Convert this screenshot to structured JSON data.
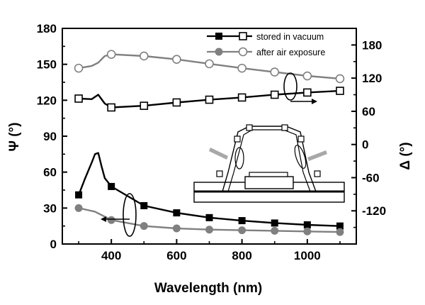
{
  "chart_data": {
    "type": "line",
    "xlabel": "Wavelength (nm)",
    "ylabel_left": "Ψ (°)",
    "ylabel_right": "Δ (°)",
    "xlim": [
      250,
      1150
    ],
    "ylim_left": [
      0,
      180
    ],
    "ylim_right": [
      -180,
      210
    ],
    "xticks": [
      400,
      600,
      800,
      1000
    ],
    "yticks_left": [
      0,
      30,
      60,
      90,
      120,
      150,
      180
    ],
    "yticks_right": [
      -120,
      -60,
      0,
      60,
      120,
      180
    ],
    "grid": false,
    "legend_position": "top-right",
    "legend": [
      "stored in vacuum",
      "after air exposure"
    ],
    "series": [
      {
        "name": "stored in vacuum",
        "quantity": "Ψ",
        "axis": "left",
        "marker": "filled-square",
        "color": "#000000",
        "x": [
          300,
          320,
          340,
          350,
          360,
          370,
          380,
          400,
          500,
          600,
          700,
          800,
          900,
          1000,
          1100
        ],
        "y": [
          41,
          55,
          68,
          75,
          76,
          65,
          55,
          48,
          32,
          26,
          22,
          19.5,
          17.5,
          16,
          15
        ],
        "marker_x": [
          300,
          400,
          500,
          600,
          700,
          800,
          900,
          1000,
          1100
        ],
        "marker_y": [
          41,
          48,
          32,
          26,
          22,
          19.5,
          17.5,
          16,
          15
        ]
      },
      {
        "name": "after air exposure",
        "quantity": "Ψ",
        "axis": "left",
        "marker": "filled-circle",
        "color": "#808080",
        "x": [
          300,
          350,
          400,
          500,
          600,
          700,
          800,
          900,
          1000,
          1100
        ],
        "y": [
          30,
          27,
          20,
          15,
          13,
          12,
          11.5,
          11,
          10.5,
          10
        ],
        "marker_x": [
          300,
          400,
          500,
          600,
          700,
          800,
          900,
          1000,
          1100
        ],
        "marker_y": [
          30,
          20,
          15,
          13,
          12,
          11.5,
          11,
          10.5,
          10
        ]
      },
      {
        "name": "stored in vacuum",
        "quantity": "Δ",
        "axis": "right",
        "marker": "open-square",
        "color": "#000000",
        "x": [
          300,
          340,
          360,
          380,
          400,
          500,
          600,
          700,
          800,
          900,
          1000,
          1100
        ],
        "y": [
          83,
          82,
          90,
          74,
          67,
          70,
          76,
          81,
          85,
          90,
          94,
          97
        ],
        "marker_x": [
          300,
          400,
          500,
          600,
          700,
          800,
          900,
          1000,
          1100
        ],
        "marker_y": [
          83,
          67,
          70,
          76,
          81,
          85,
          90,
          94,
          97
        ]
      },
      {
        "name": "after air exposure",
        "quantity": "Δ",
        "axis": "right",
        "marker": "open-circle",
        "color": "#808080",
        "x": [
          300,
          340,
          360,
          380,
          400,
          500,
          600,
          700,
          800,
          900,
          1000,
          1100
        ],
        "y": [
          138,
          142,
          148,
          160,
          163,
          160,
          154,
          146,
          138,
          131,
          124,
          119
        ],
        "marker_x": [
          300,
          400,
          500,
          600,
          700,
          800,
          900,
          1000,
          1100
        ],
        "marker_y": [
          138,
          163,
          160,
          154,
          146,
          138,
          131,
          124,
          119
        ]
      }
    ]
  }
}
